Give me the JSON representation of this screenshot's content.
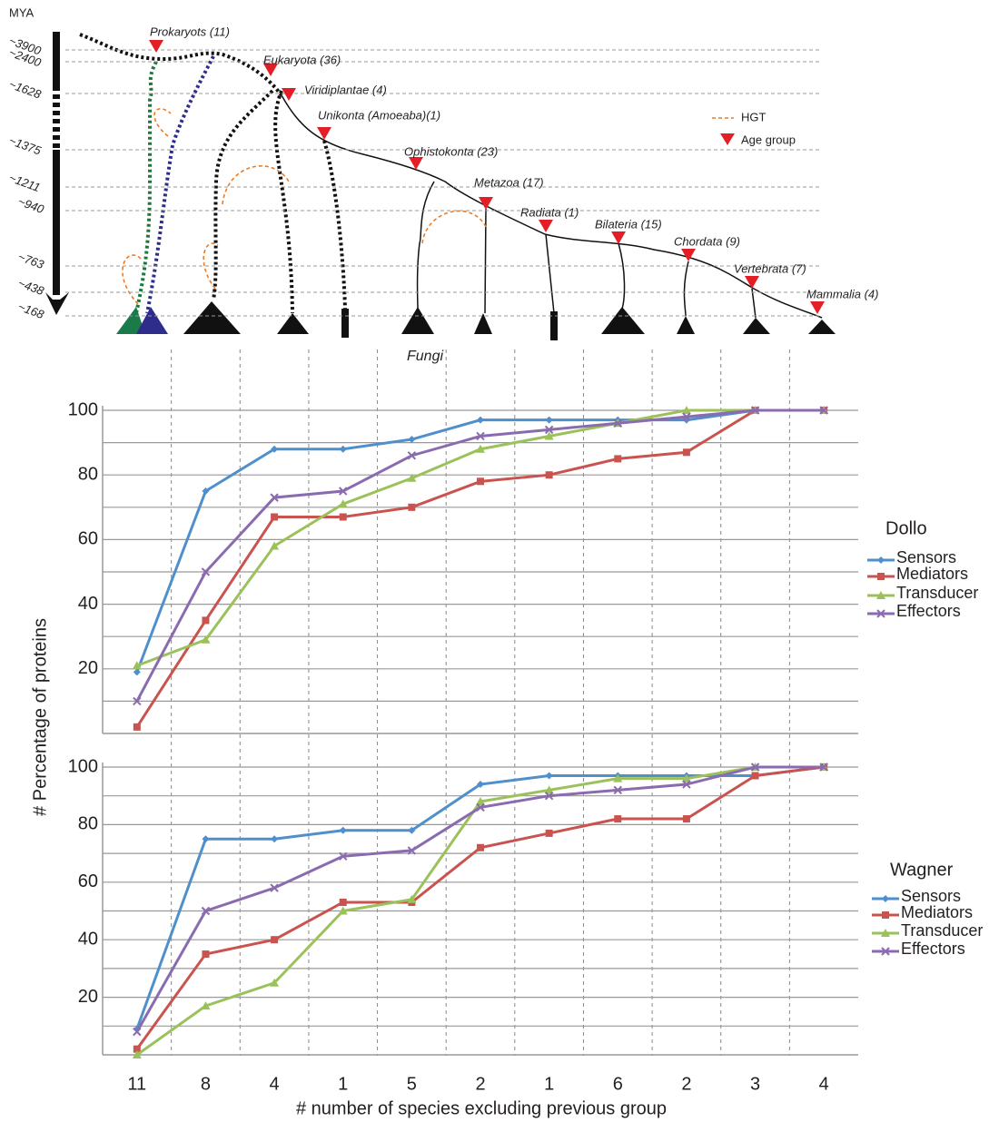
{
  "tree": {
    "axis_title": "MYA",
    "ages": [
      "~3900",
      "~2400",
      "~1628",
      "~1375",
      "~1211",
      "~940",
      "~763",
      "~438",
      "~168"
    ],
    "groups": [
      "Prokaryots (11)",
      "Eukaryota (36)",
      "Viridiplantae (4)",
      "Unikonta (Amoeaba)(1)",
      "Ophistokonta (23)",
      "Metazoa (17)",
      "Radiata (1)",
      "Bilateria (15)",
      "Chordata (9)",
      "Vertebrata (7)",
      "Mammalia (4)"
    ],
    "legend": [
      "HGT",
      "Age group"
    ],
    "fungi": "Fungi"
  },
  "chart_data": [
    {
      "type": "line",
      "title": "Dollo",
      "ylabel": "# Percentage of proteins",
      "ylim": [
        0,
        100
      ],
      "yticks": [
        20,
        40,
        60,
        80,
        100
      ],
      "ygrid": [
        10,
        20,
        30,
        40,
        50,
        60,
        70,
        80,
        90,
        100
      ],
      "series": [
        {
          "name": "Sensors",
          "color": "#4f8fcc",
          "values": [
            19,
            75,
            88,
            88,
            91,
            97,
            97,
            97,
            97,
            100,
            100
          ]
        },
        {
          "name": "Mediators",
          "color": "#c9534f",
          "values": [
            2,
            35,
            67,
            67,
            70,
            78,
            80,
            85,
            87,
            100,
            100
          ]
        },
        {
          "name": "Transducer",
          "color": "#9bc25a",
          "values": [
            21,
            29,
            58,
            71,
            79,
            88,
            92,
            96,
            100,
            100,
            100
          ]
        },
        {
          "name": "Effectors",
          "color": "#8a6bb0",
          "values": [
            10,
            50,
            73,
            75,
            86,
            92,
            94,
            96,
            98,
            100,
            100
          ]
        }
      ]
    },
    {
      "type": "line",
      "title": "Wagner",
      "xlabel": "# number of species excluding previous group",
      "categories": [
        "11",
        "8",
        "4",
        "1",
        "5",
        "2",
        "1",
        "6",
        "2",
        "3",
        "4"
      ],
      "ylim": [
        0,
        100
      ],
      "yticks": [
        20,
        40,
        60,
        80,
        100
      ],
      "ygrid": [
        10,
        20,
        30,
        40,
        50,
        60,
        70,
        80,
        90,
        100
      ],
      "series": [
        {
          "name": "Sensors",
          "color": "#4f8fcc",
          "values": [
            9,
            75,
            75,
            78,
            78,
            94,
            97,
            97,
            97,
            97,
            100
          ]
        },
        {
          "name": "Mediators",
          "color": "#c9534f",
          "values": [
            2,
            35,
            40,
            53,
            53,
            72,
            77,
            82,
            82,
            97,
            100
          ]
        },
        {
          "name": "Transducer",
          "color": "#9bc25a",
          "values": [
            0,
            17,
            25,
            50,
            54,
            88,
            92,
            96,
            96,
            100,
            100
          ]
        },
        {
          "name": "Effectors",
          "color": "#8a6bb0",
          "values": [
            8,
            50,
            58,
            69,
            71,
            86,
            90,
            92,
            94,
            100,
            100
          ]
        }
      ]
    }
  ]
}
